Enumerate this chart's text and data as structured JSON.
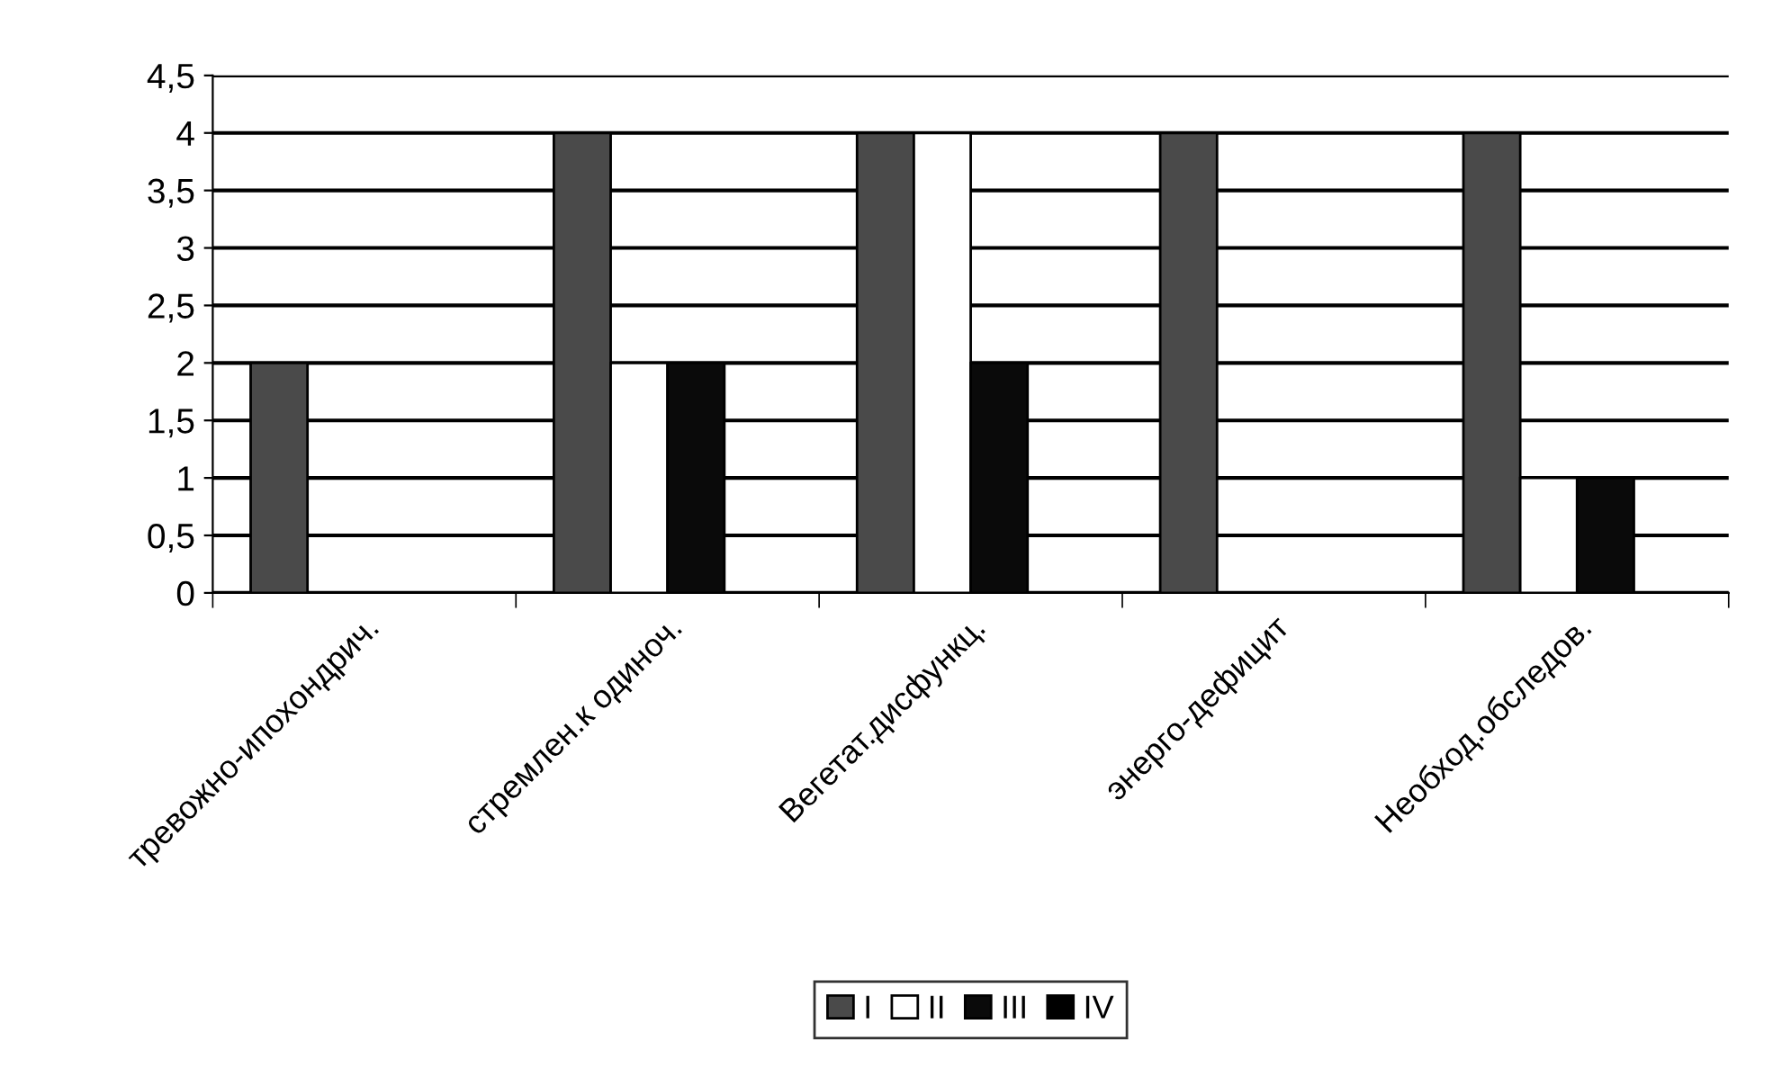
{
  "chart_data": {
    "type": "bar",
    "categories": [
      "тревожно-ипохондрич.",
      "стремлен.к одиноч.",
      "Вегетат.дисфункц.",
      "энерго-дефицит",
      "Необход.обследов."
    ],
    "series": [
      {
        "name": "I",
        "color": "#4a4a4a",
        "values": [
          2,
          4,
          4,
          4,
          4
        ]
      },
      {
        "name": "II",
        "color": "#ffffff",
        "values": [
          0,
          2,
          4,
          0,
          1
        ]
      },
      {
        "name": "III",
        "color": "#0a0a0a",
        "values": [
          0,
          2,
          2,
          0,
          1
        ]
      },
      {
        "name": "IV",
        "color": "#000000",
        "values": [
          0,
          0,
          0,
          0,
          0
        ]
      }
    ],
    "ylim": [
      0,
      4.5
    ],
    "yticks": [
      0,
      {
        "value": 0.5,
        "label": "0,5"
      },
      1,
      {
        "value": 1.5,
        "label": "1,5"
      },
      2,
      {
        "value": 2.5,
        "label": "2,5"
      },
      3,
      {
        "value": 3.5,
        "label": "3,5"
      },
      4,
      {
        "value": 4.5,
        "label": "4,5"
      }
    ],
    "grid": "y",
    "legend": "bottom"
  }
}
